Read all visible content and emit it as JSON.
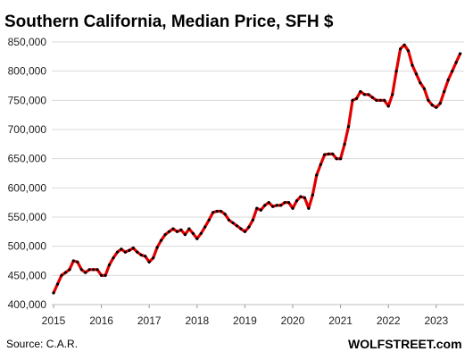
{
  "chart_data": {
    "type": "line",
    "title": "Southern California,  Median Price, SFH $",
    "xlabel": "",
    "ylabel": "",
    "source": "Source: C.A.R.",
    "brand": "WOLFSTREET.com",
    "ylim": [
      400000,
      850000
    ],
    "yticks": [
      400000,
      450000,
      500000,
      550000,
      600000,
      650000,
      700000,
      750000,
      800000,
      850000
    ],
    "ytick_labels": [
      "400,000",
      "450,000",
      "500,000",
      "550,000",
      "600,000",
      "650,000",
      "700,000",
      "750,000",
      "800,000",
      "850,000"
    ],
    "xticks": [
      "2015",
      "2016",
      "2017",
      "2018",
      "2019",
      "2020",
      "2021",
      "2022",
      "2023"
    ],
    "x_start": "2015-01",
    "x_end": "2023-07",
    "grid": true,
    "line_color": "#e00000",
    "marker_color": "#000000",
    "series": [
      {
        "values": [
          420000,
          435000,
          450000,
          455000,
          460000,
          475000,
          473000,
          460000,
          455000,
          460000,
          460000,
          460000,
          450000,
          450000,
          468000,
          480000,
          490000,
          495000,
          490000,
          493000,
          497000,
          490000,
          485000,
          483000,
          473000,
          480000,
          498000,
          510000,
          520000,
          525000,
          530000,
          525000,
          528000,
          520000,
          530000,
          522000,
          513000,
          522000,
          533000,
          545000,
          558000,
          560000,
          560000,
          555000,
          545000,
          540000,
          535000,
          530000,
          525000,
          533000,
          545000,
          565000,
          562000,
          570000,
          575000,
          568000,
          570000,
          570000,
          575000,
          575000,
          565000,
          578000,
          585000,
          583000,
          565000,
          588000,
          622000,
          640000,
          657000,
          658000,
          658000,
          650000,
          650000,
          675000,
          705000,
          750000,
          753000,
          765000,
          760000,
          760000,
          755000,
          750000,
          750000,
          750000,
          740000,
          760000,
          800000,
          838000,
          845000,
          835000,
          810000,
          795000,
          780000,
          770000,
          750000,
          742000,
          738000,
          745000,
          765000,
          785000,
          800000,
          815000,
          830000
        ]
      }
    ]
  }
}
